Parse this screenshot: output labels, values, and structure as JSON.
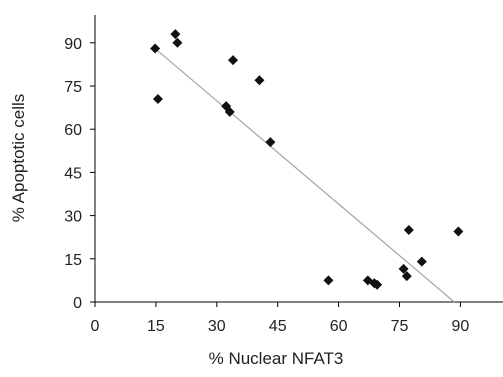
{
  "chart_data": {
    "type": "scatter",
    "title": "",
    "xlabel": "% Nuclear NFAT3",
    "ylabel": "% Apoptotic cells",
    "xlim": [
      0,
      100
    ],
    "ylim": [
      0,
      100
    ],
    "x_ticks": [
      0,
      15,
      30,
      45,
      60,
      75,
      90
    ],
    "y_ticks": [
      0,
      15,
      30,
      45,
      60,
      75,
      90
    ],
    "grid": false,
    "marker": "diamond",
    "marker_color": "#111111",
    "trendline_color": "#aaaaaa",
    "points": [
      {
        "x": 14.8,
        "y": 88
      },
      {
        "x": 15.5,
        "y": 70.5
      },
      {
        "x": 19.8,
        "y": 93
      },
      {
        "x": 20.3,
        "y": 90
      },
      {
        "x": 32.3,
        "y": 68
      },
      {
        "x": 33.2,
        "y": 66
      },
      {
        "x": 34,
        "y": 84
      },
      {
        "x": 40.5,
        "y": 77
      },
      {
        "x": 43.2,
        "y": 55.5
      },
      {
        "x": 57.5,
        "y": 7.5
      },
      {
        "x": 67.2,
        "y": 7.5
      },
      {
        "x": 68.8,
        "y": 6.5
      },
      {
        "x": 69.5,
        "y": 6
      },
      {
        "x": 76,
        "y": 11.5
      },
      {
        "x": 76.8,
        "y": 9
      },
      {
        "x": 77.3,
        "y": 25
      },
      {
        "x": 80.5,
        "y": 14
      },
      {
        "x": 89.5,
        "y": 24.5
      }
    ],
    "trendline": {
      "x": [
        14.8,
        88.5
      ],
      "y": [
        88,
        0
      ]
    }
  }
}
